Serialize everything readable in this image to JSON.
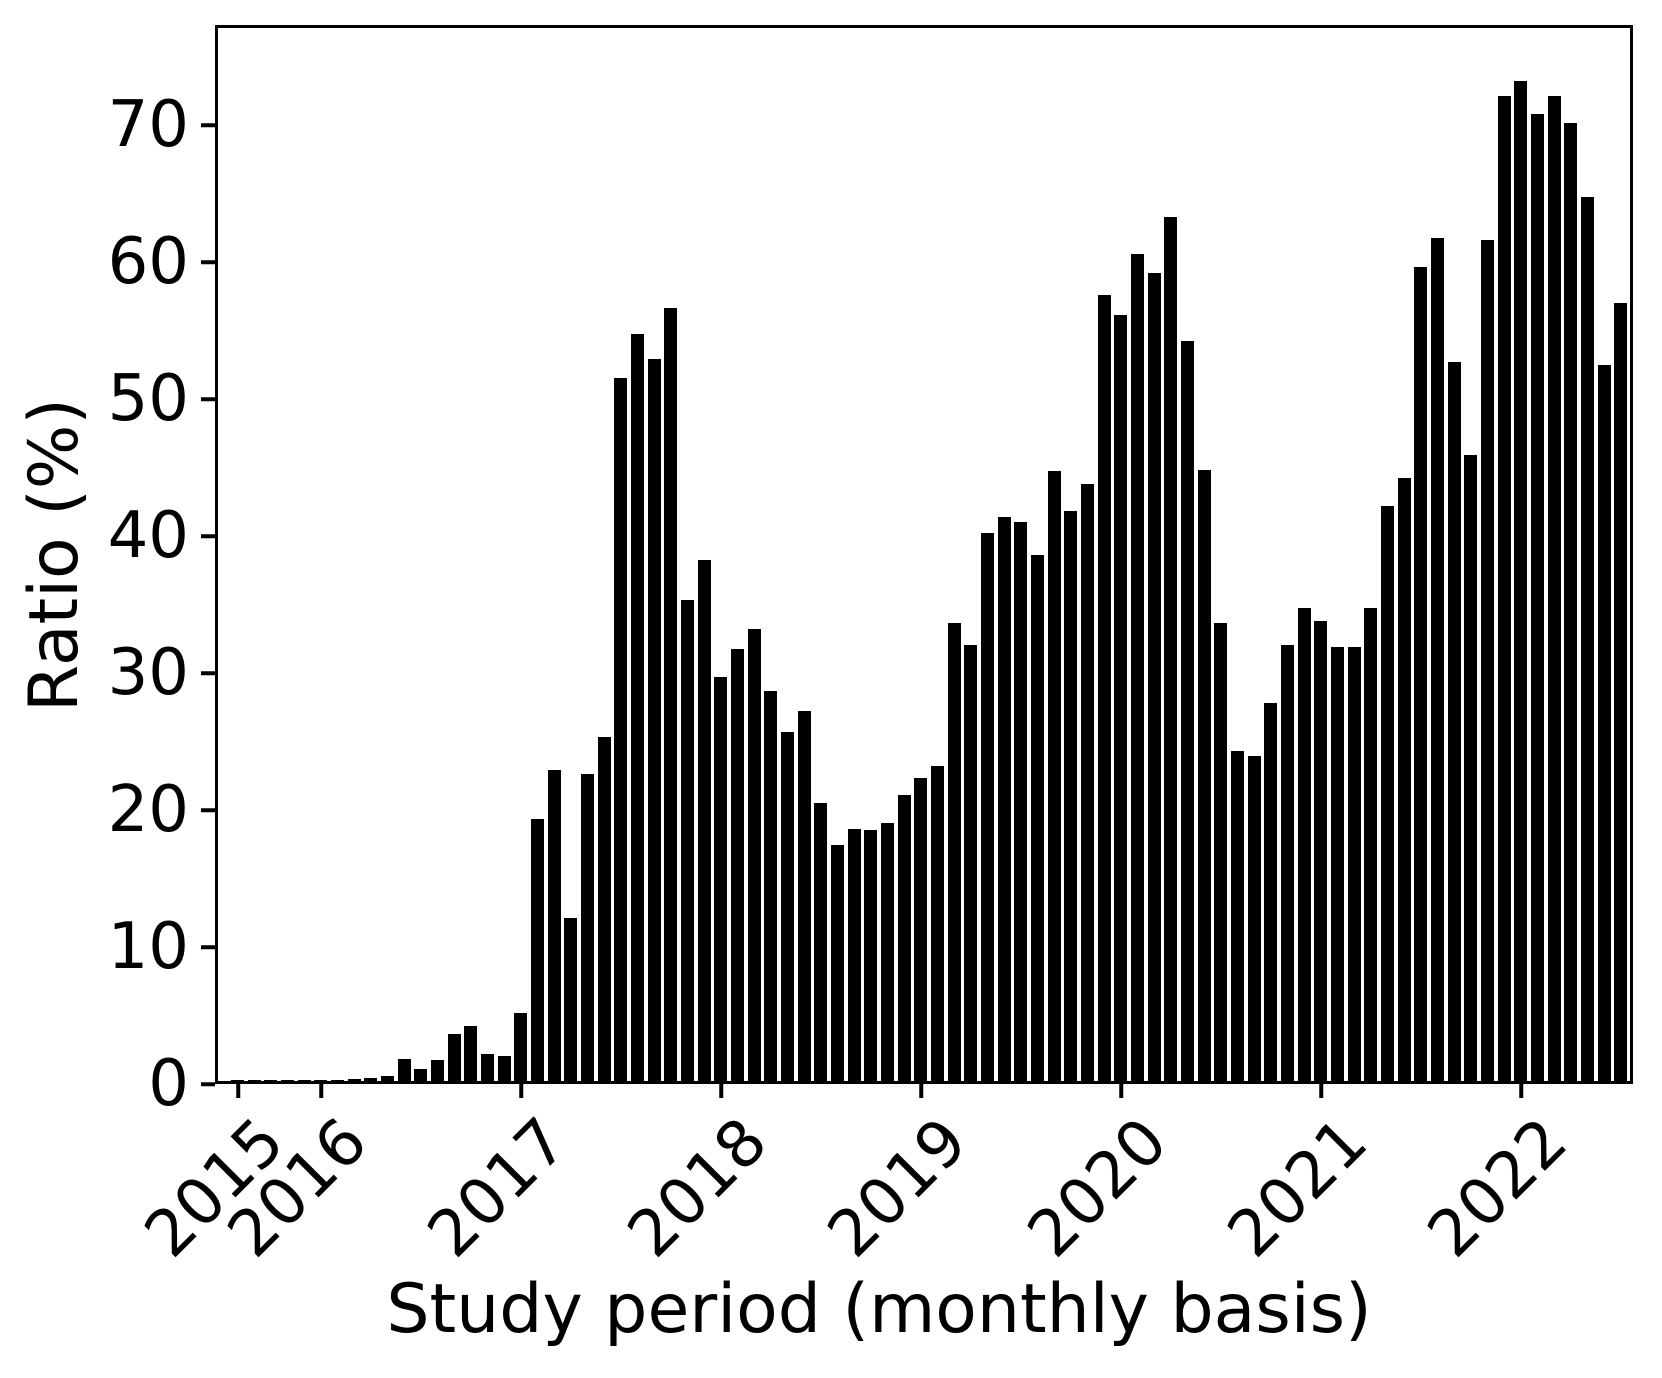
{
  "chart_data": {
    "type": "bar",
    "title": "",
    "xlabel": "Study period (monthly basis)",
    "ylabel": "Ratio (%)",
    "bar_color": "#000000",
    "background_color": "#ffffff",
    "grid": false,
    "legend": "none",
    "ylim": [
      0,
      77.3
    ],
    "y_ticks": [
      0,
      10,
      20,
      30,
      40,
      50,
      60,
      70
    ],
    "x_tick_years": [
      {
        "label": "2015",
        "month_index": 0
      },
      {
        "label": "2016",
        "month_index": 5
      },
      {
        "label": "2017",
        "month_index": 17
      },
      {
        "label": "2018",
        "month_index": 29
      },
      {
        "label": "2019",
        "month_index": 41
      },
      {
        "label": "2020",
        "month_index": 53
      },
      {
        "label": "2021",
        "month_index": 65
      },
      {
        "label": "2022",
        "month_index": 77
      }
    ],
    "x": [
      "2015-08",
      "2015-09",
      "2015-10",
      "2015-11",
      "2015-12",
      "2016-01",
      "2016-02",
      "2016-03",
      "2016-04",
      "2016-05",
      "2016-06",
      "2016-07",
      "2016-08",
      "2016-09",
      "2016-10",
      "2016-11",
      "2016-12",
      "2017-01",
      "2017-02",
      "2017-03",
      "2017-04",
      "2017-05",
      "2017-06",
      "2017-07",
      "2017-08",
      "2017-09",
      "2017-10",
      "2017-11",
      "2017-12",
      "2018-01",
      "2018-02",
      "2018-03",
      "2018-04",
      "2018-05",
      "2018-06",
      "2018-07",
      "2018-08",
      "2018-09",
      "2018-10",
      "2018-11",
      "2018-12",
      "2019-01",
      "2019-02",
      "2019-03",
      "2019-04",
      "2019-05",
      "2019-06",
      "2019-07",
      "2019-08",
      "2019-09",
      "2019-10",
      "2019-11",
      "2019-12",
      "2020-01",
      "2020-02",
      "2020-03",
      "2020-04",
      "2020-05",
      "2020-06",
      "2020-07",
      "2020-08",
      "2020-09",
      "2020-10",
      "2020-11",
      "2020-12",
      "2021-01",
      "2021-02",
      "2021-03",
      "2021-04",
      "2021-05",
      "2021-06",
      "2021-07",
      "2021-08",
      "2021-09",
      "2021-10",
      "2021-11",
      "2021-12",
      "2022-01",
      "2022-02",
      "2022-03",
      "2022-04",
      "2022-05",
      "2022-06",
      "2022-07"
    ],
    "values": [
      0.1,
      0.1,
      0.1,
      0.1,
      0.1,
      0.1,
      0.1,
      0.15,
      0.2,
      0.35,
      1.6,
      0.9,
      1.5,
      3.4,
      4.0,
      2.0,
      1.8,
      5.0,
      19.1,
      22.7,
      11.9,
      22.4,
      25.1,
      51.3,
      54.5,
      52.7,
      56.4,
      35.1,
      38.0,
      29.5,
      31.5,
      33.0,
      28.5,
      25.5,
      27.0,
      20.3,
      17.2,
      18.4,
      18.3,
      18.8,
      20.9,
      22.1,
      23.0,
      33.4,
      31.8,
      40.0,
      41.2,
      40.8,
      38.4,
      44.5,
      41.6,
      43.6,
      57.4,
      55.9,
      60.4,
      59.0,
      63.1,
      54.0,
      44.6,
      33.4,
      24.1,
      23.7,
      27.6,
      31.8,
      34.5,
      33.6,
      31.7,
      31.7,
      34.5,
      42.0,
      44.0,
      59.4,
      61.5,
      52.5,
      45.7,
      61.4,
      71.9,
      73.0,
      70.6,
      71.9,
      69.9,
      64.5,
      52.3,
      56.8
    ]
  }
}
